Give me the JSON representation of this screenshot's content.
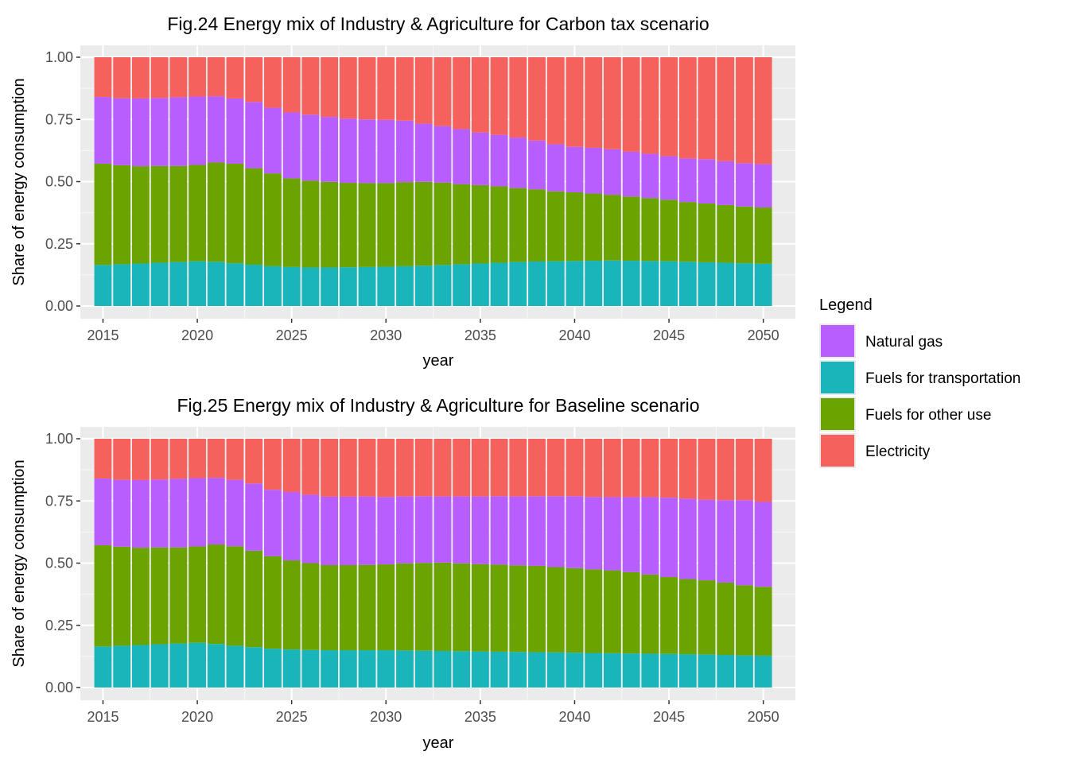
{
  "legend": {
    "title": "Legend",
    "items": [
      {
        "label": "Natural gas",
        "color": "#B85EFF"
      },
      {
        "label": "Fuels for transportation",
        "color": "#19B5BA"
      },
      {
        "label": "Fuels for other use",
        "color": "#6BA300"
      },
      {
        "label": "Electricity",
        "color": "#F5625D"
      }
    ]
  },
  "chart_data": [
    {
      "type": "bar",
      "stacked": true,
      "title": "Fig.24 Energy mix of Industry & Agriculture for Carbon tax scenario",
      "xlabel": "year",
      "ylabel": "Share of energy consumption",
      "ylim": [
        0,
        1
      ],
      "yticks": [
        "0.00",
        "0.25",
        "0.50",
        "0.75",
        "1.00"
      ],
      "xticks": [
        "2015",
        "2020",
        "2025",
        "2030",
        "2035",
        "2040",
        "2045",
        "2050"
      ],
      "x": [
        2015,
        2016,
        2017,
        2018,
        2019,
        2020,
        2021,
        2022,
        2023,
        2024,
        2025,
        2026,
        2027,
        2028,
        2029,
        2030,
        2031,
        2032,
        2033,
        2034,
        2035,
        2036,
        2037,
        2038,
        2039,
        2040,
        2041,
        2042,
        2043,
        2044,
        2045,
        2046,
        2047,
        2048,
        2049,
        2050
      ],
      "series": [
        {
          "name": "Fuels for transportation",
          "values": [
            0.165,
            0.168,
            0.171,
            0.174,
            0.177,
            0.18,
            0.178,
            0.172,
            0.166,
            0.16,
            0.157,
            0.155,
            0.155,
            0.156,
            0.157,
            0.158,
            0.16,
            0.162,
            0.165,
            0.168,
            0.171,
            0.174,
            0.177,
            0.179,
            0.18,
            0.181,
            0.182,
            0.183,
            0.182,
            0.181,
            0.18,
            0.178,
            0.176,
            0.174,
            0.172,
            0.17
          ]
        },
        {
          "name": "Fuels for other use",
          "values": [
            0.407,
            0.398,
            0.391,
            0.389,
            0.386,
            0.387,
            0.399,
            0.4,
            0.388,
            0.373,
            0.356,
            0.349,
            0.344,
            0.339,
            0.337,
            0.336,
            0.338,
            0.337,
            0.331,
            0.322,
            0.315,
            0.307,
            0.297,
            0.29,
            0.281,
            0.276,
            0.27,
            0.264,
            0.258,
            0.253,
            0.247,
            0.24,
            0.236,
            0.232,
            0.228,
            0.226
          ]
        },
        {
          "name": "Natural gas",
          "values": [
            0.268,
            0.269,
            0.272,
            0.273,
            0.276,
            0.275,
            0.266,
            0.262,
            0.266,
            0.264,
            0.265,
            0.265,
            0.261,
            0.258,
            0.256,
            0.254,
            0.247,
            0.234,
            0.227,
            0.221,
            0.211,
            0.207,
            0.203,
            0.196,
            0.189,
            0.183,
            0.184,
            0.183,
            0.18,
            0.178,
            0.175,
            0.175,
            0.178,
            0.176,
            0.174,
            0.174
          ]
        },
        {
          "name": "Electricity",
          "values": [
            0.16,
            0.165,
            0.166,
            0.164,
            0.161,
            0.158,
            0.157,
            0.166,
            0.18,
            0.203,
            0.222,
            0.231,
            0.24,
            0.247,
            0.25,
            0.252,
            0.255,
            0.267,
            0.277,
            0.289,
            0.303,
            0.312,
            0.323,
            0.335,
            0.35,
            0.36,
            0.364,
            0.37,
            0.38,
            0.388,
            0.398,
            0.407,
            0.41,
            0.418,
            0.426,
            0.43
          ]
        }
      ]
    },
    {
      "type": "bar",
      "stacked": true,
      "title": "Fig.25 Energy mix of Industry & Agriculture for Baseline scenario",
      "xlabel": "year",
      "ylabel": "Share of energy consumption",
      "ylim": [
        0,
        1
      ],
      "yticks": [
        "0.00",
        "0.25",
        "0.50",
        "0.75",
        "1.00"
      ],
      "xticks": [
        "2015",
        "2020",
        "2025",
        "2030",
        "2035",
        "2040",
        "2045",
        "2050"
      ],
      "x": [
        2015,
        2016,
        2017,
        2018,
        2019,
        2020,
        2021,
        2022,
        2023,
        2024,
        2025,
        2026,
        2027,
        2028,
        2029,
        2030,
        2031,
        2032,
        2033,
        2034,
        2035,
        2036,
        2037,
        2038,
        2039,
        2040,
        2041,
        2042,
        2043,
        2044,
        2045,
        2046,
        2047,
        2048,
        2049,
        2050
      ],
      "series": [
        {
          "name": "Fuels for transportation",
          "values": [
            0.165,
            0.168,
            0.171,
            0.174,
            0.177,
            0.18,
            0.175,
            0.168,
            0.162,
            0.156,
            0.153,
            0.151,
            0.15,
            0.15,
            0.15,
            0.15,
            0.149,
            0.148,
            0.147,
            0.146,
            0.145,
            0.144,
            0.143,
            0.142,
            0.141,
            0.14,
            0.139,
            0.138,
            0.137,
            0.136,
            0.135,
            0.134,
            0.133,
            0.131,
            0.129,
            0.128
          ]
        },
        {
          "name": "Fuels for other use",
          "values": [
            0.407,
            0.398,
            0.391,
            0.389,
            0.386,
            0.387,
            0.4,
            0.4,
            0.388,
            0.372,
            0.358,
            0.349,
            0.342,
            0.342,
            0.343,
            0.345,
            0.35,
            0.353,
            0.355,
            0.353,
            0.351,
            0.35,
            0.348,
            0.347,
            0.343,
            0.34,
            0.336,
            0.333,
            0.327,
            0.318,
            0.309,
            0.302,
            0.298,
            0.291,
            0.282,
            0.277
          ]
        },
        {
          "name": "Natural gas",
          "values": [
            0.268,
            0.269,
            0.272,
            0.273,
            0.276,
            0.275,
            0.268,
            0.267,
            0.27,
            0.267,
            0.275,
            0.275,
            0.275,
            0.275,
            0.275,
            0.271,
            0.269,
            0.268,
            0.266,
            0.269,
            0.272,
            0.275,
            0.277,
            0.28,
            0.285,
            0.289,
            0.291,
            0.294,
            0.301,
            0.311,
            0.319,
            0.323,
            0.324,
            0.331,
            0.342,
            0.341
          ]
        },
        {
          "name": "Electricity",
          "values": [
            0.16,
            0.165,
            0.166,
            0.164,
            0.161,
            0.158,
            0.157,
            0.165,
            0.18,
            0.205,
            0.214,
            0.225,
            0.233,
            0.233,
            0.232,
            0.234,
            0.232,
            0.231,
            0.232,
            0.232,
            0.232,
            0.231,
            0.232,
            0.231,
            0.231,
            0.231,
            0.234,
            0.235,
            0.235,
            0.235,
            0.237,
            0.241,
            0.245,
            0.247,
            0.247,
            0.254
          ]
        }
      ]
    }
  ]
}
